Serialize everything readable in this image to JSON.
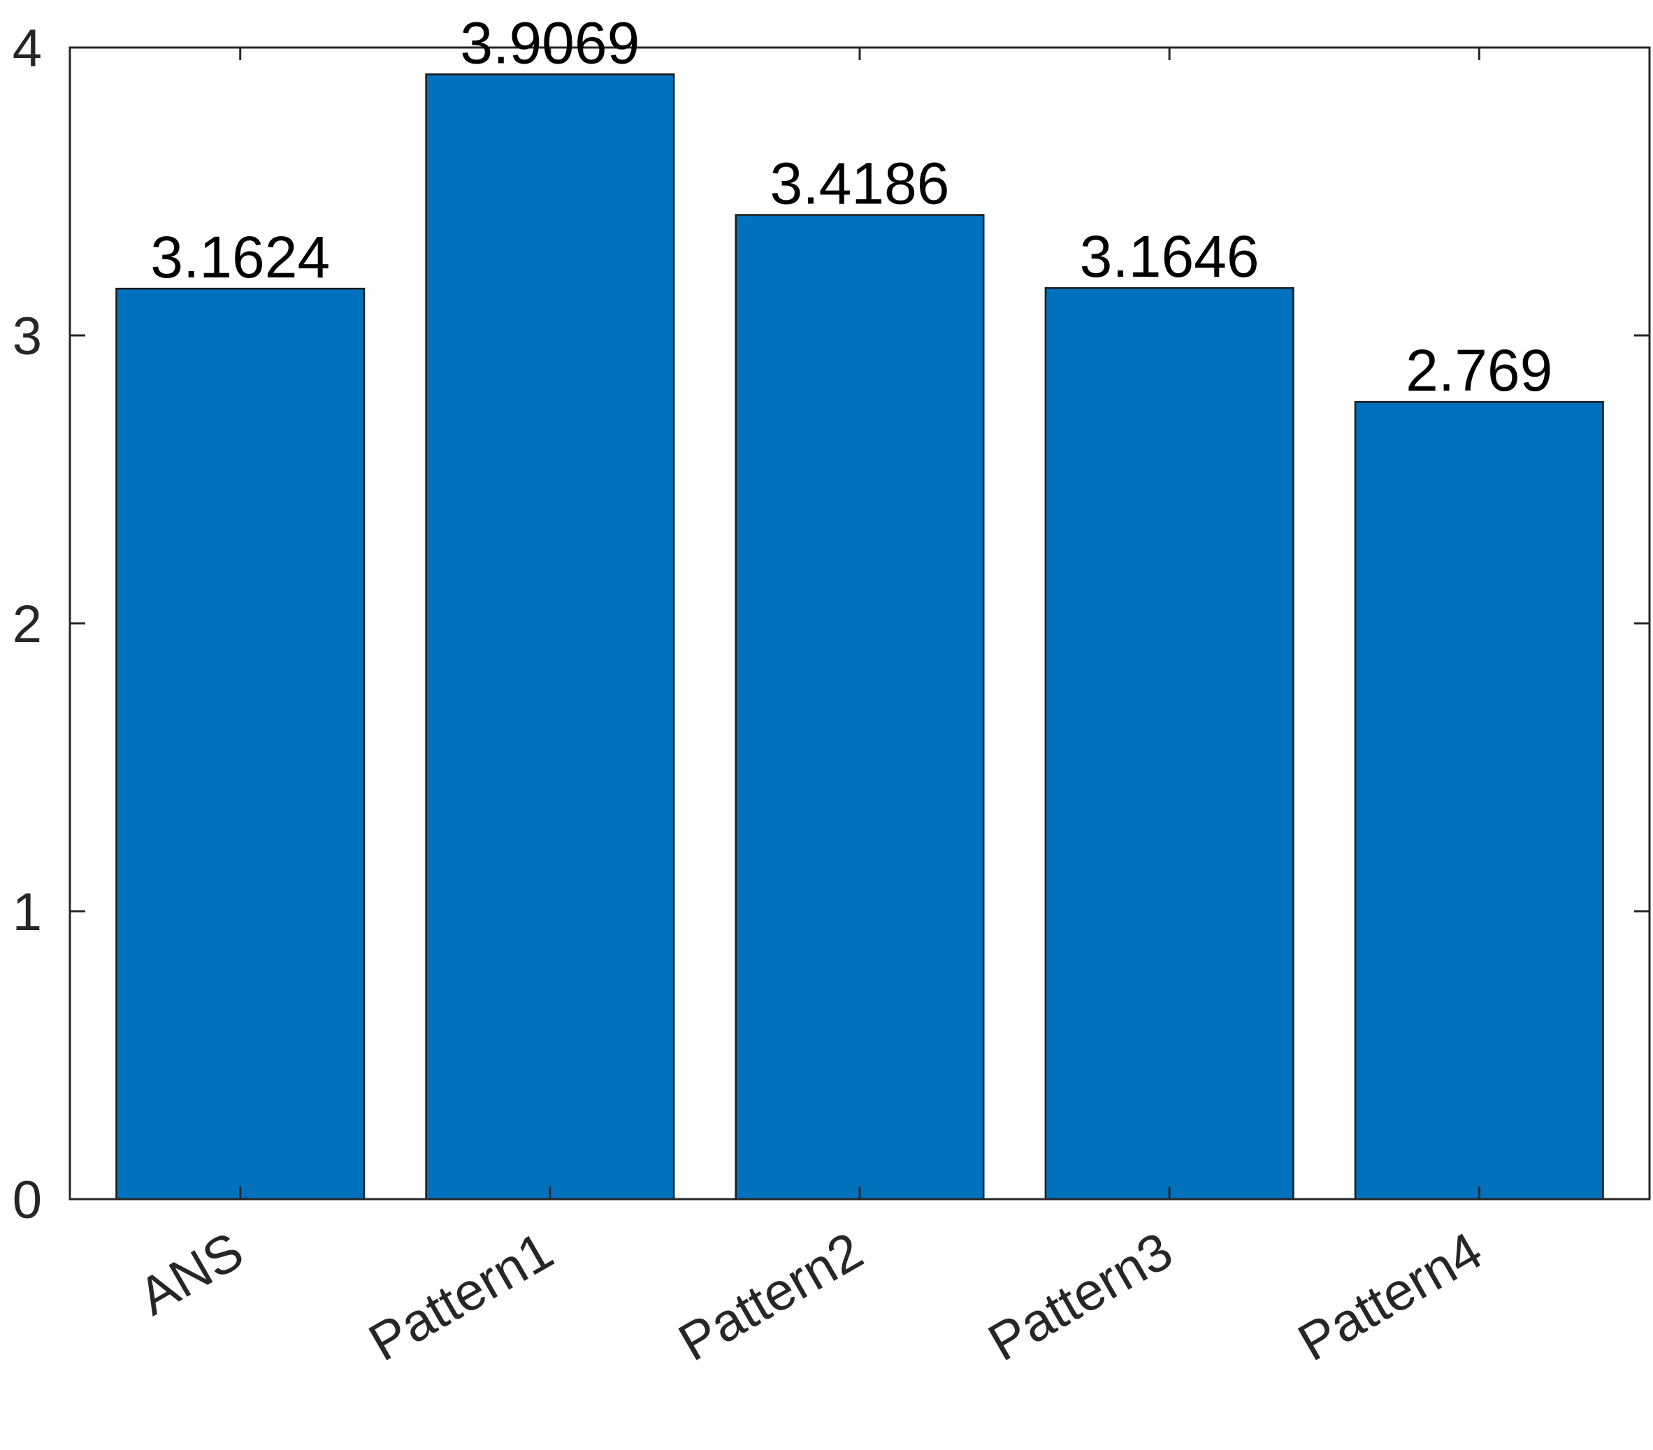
{
  "chart_data": {
    "type": "bar",
    "categories": [
      "ANS",
      "Pattern1",
      "Pattern2",
      "Pattern3",
      "Pattern4"
    ],
    "values": [
      3.1624,
      3.9069,
      3.4186,
      3.1646,
      2.769
    ],
    "data_labels": [
      "3.1624",
      "3.9069",
      "3.4186",
      "3.1646",
      "2.769"
    ],
    "title": "",
    "xlabel": "",
    "ylabel": "",
    "ylim": [
      0,
      4
    ],
    "yticks": [
      0,
      1,
      2,
      3,
      4
    ],
    "ytick_labels": [
      "0",
      "1",
      "2",
      "3",
      "4"
    ],
    "grid": false,
    "legend": "none",
    "bar_color": "#0072BD",
    "edge_color": "#1a1a1a",
    "axis_color": "#262626"
  }
}
